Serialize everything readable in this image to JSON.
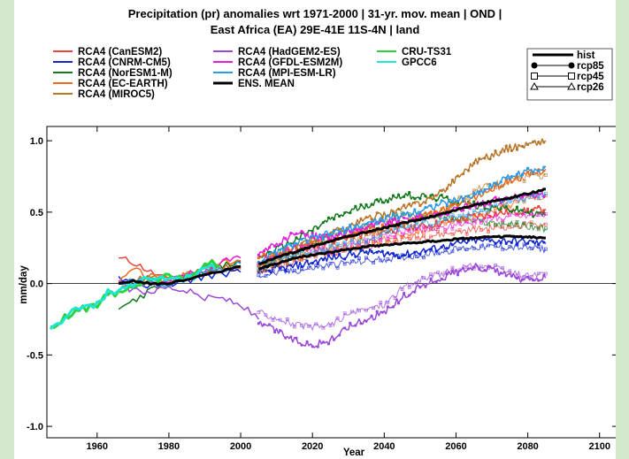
{
  "chart_data": {
    "type": "line",
    "title": [
      "Precipitation (pr) anomalies wrt 1971-2000 | 31-yr. mov. mean | OND |",
      "East Africa (EA) 29E-41E 11S-4N | land"
    ],
    "xlabel": "Year",
    "ylabel": "mm/day",
    "xlim": [
      1946,
      2105
    ],
    "ylim": [
      -1.08,
      1.1
    ],
    "xticks": [
      1960,
      1980,
      2000,
      2020,
      2040,
      2060,
      2080,
      2100
    ],
    "yticks": [
      -1.0,
      -0.5,
      0.0,
      0.5,
      1.0
    ],
    "ytick_labels": [
      "-1.0",
      "-0.5",
      "0.0",
      "0.5",
      "1.0"
    ],
    "zero_line": true,
    "grid": false,
    "legend_position": "top",
    "series": [
      {
        "name": "RCA4 (CanESM2)",
        "color": "#e8463c",
        "hist": [
          [
            1966,
            0.18
          ],
          [
            1970,
            0.15
          ],
          [
            1975,
            0.08
          ],
          [
            1980,
            0.02
          ],
          [
            1985,
            0.05
          ],
          [
            1990,
            0.08
          ],
          [
            1995,
            0.1
          ],
          [
            2000,
            0.12
          ]
        ],
        "rcp85": [
          [
            2005,
            0.12
          ],
          [
            2015,
            0.22
          ],
          [
            2025,
            0.3
          ],
          [
            2035,
            0.35
          ],
          [
            2045,
            0.38
          ],
          [
            2055,
            0.42
          ],
          [
            2065,
            0.47
          ],
          [
            2075,
            0.5
          ],
          [
            2085,
            0.52
          ]
        ]
      },
      {
        "name": "RCA4 (CNRM-CM5)",
        "color": "#1428d2",
        "hist": [
          [
            1966,
            0.05
          ],
          [
            1970,
            0.0
          ],
          [
            1975,
            -0.02
          ],
          [
            1980,
            0.0
          ],
          [
            1985,
            0.02
          ],
          [
            1990,
            0.05
          ],
          [
            1995,
            0.07
          ],
          [
            2000,
            0.08
          ]
        ],
        "rcp85": [
          [
            2005,
            0.08
          ],
          [
            2015,
            0.12
          ],
          [
            2025,
            0.18
          ],
          [
            2035,
            0.22
          ],
          [
            2045,
            0.2
          ],
          [
            2055,
            0.25
          ],
          [
            2065,
            0.3
          ],
          [
            2075,
            0.3
          ],
          [
            2085,
            0.28
          ]
        ]
      },
      {
        "name": "RCA4 (NorESM1-M)",
        "color": "#157a1e",
        "hist": [
          [
            1966,
            -0.18
          ],
          [
            1970,
            -0.12
          ],
          [
            1975,
            -0.05
          ],
          [
            1980,
            0.0
          ],
          [
            1985,
            0.05
          ],
          [
            1990,
            0.08
          ],
          [
            1995,
            0.12
          ],
          [
            2000,
            0.15
          ]
        ],
        "rcp85": [
          [
            2005,
            0.18
          ],
          [
            2015,
            0.3
          ],
          [
            2025,
            0.45
          ],
          [
            2035,
            0.55
          ],
          [
            2045,
            0.62
          ],
          [
            2055,
            0.6
          ],
          [
            2065,
            0.55
          ],
          [
            2075,
            0.52
          ],
          [
            2085,
            0.48
          ]
        ]
      },
      {
        "name": "RCA4 (EC-EARTH)",
        "color": "#f06a1e",
        "hist": [
          [
            1966,
            0.0
          ],
          [
            1970,
            0.1
          ],
          [
            1975,
            0.05
          ],
          [
            1980,
            0.02
          ],
          [
            1985,
            0.06
          ],
          [
            1990,
            0.1
          ],
          [
            1995,
            0.14
          ],
          [
            2000,
            0.16
          ]
        ],
        "rcp85": [
          [
            2005,
            0.18
          ],
          [
            2015,
            0.25
          ],
          [
            2025,
            0.32
          ],
          [
            2035,
            0.38
          ],
          [
            2045,
            0.42
          ],
          [
            2055,
            0.5
          ],
          [
            2065,
            0.6
          ],
          [
            2075,
            0.72
          ],
          [
            2085,
            0.8
          ]
        ]
      },
      {
        "name": "RCA4 (MIROC5)",
        "color": "#b8762a",
        "hist": [
          [
            1966,
            -0.05
          ],
          [
            1970,
            0.02
          ],
          [
            1975,
            0.05
          ],
          [
            1980,
            0.03
          ],
          [
            1985,
            0.06
          ],
          [
            1990,
            0.1
          ],
          [
            1995,
            0.12
          ],
          [
            2000,
            0.1
          ]
        ],
        "rcp85": [
          [
            2005,
            0.12
          ],
          [
            2015,
            0.25
          ],
          [
            2025,
            0.35
          ],
          [
            2035,
            0.45
          ],
          [
            2045,
            0.52
          ],
          [
            2055,
            0.62
          ],
          [
            2065,
            0.85
          ],
          [
            2075,
            0.95
          ],
          [
            2085,
            1.0
          ]
        ]
      },
      {
        "name": "RCA4 (HadGEM2-ES)",
        "color": "#9a48d8",
        "hist": [
          [
            1966,
            0.0
          ],
          [
            1970,
            -0.05
          ],
          [
            1975,
            -0.05
          ],
          [
            1980,
            -0.02
          ],
          [
            1985,
            -0.05
          ],
          [
            1990,
            -0.1
          ],
          [
            1995,
            -0.1
          ],
          [
            2000,
            -0.15
          ],
          [
            2005,
            -0.25
          ]
        ],
        "rcp85": [
          [
            2005,
            -0.28
          ],
          [
            2010,
            -0.33
          ],
          [
            2015,
            -0.4
          ],
          [
            2020,
            -0.43
          ],
          [
            2025,
            -0.4
          ],
          [
            2030,
            -0.3
          ],
          [
            2035,
            -0.25
          ],
          [
            2040,
            -0.2
          ],
          [
            2045,
            -0.1
          ],
          [
            2050,
            -0.02
          ],
          [
            2055,
            0.03
          ],
          [
            2060,
            0.08
          ],
          [
            2065,
            0.12
          ],
          [
            2070,
            0.1
          ],
          [
            2075,
            0.05
          ],
          [
            2080,
            0.02
          ],
          [
            2085,
            0.04
          ]
        ]
      },
      {
        "name": "RCA4 (GFDL-ESM2M)",
        "color": "#e81cdc",
        "hist": [
          [
            1966,
            0.02
          ],
          [
            1970,
            0.0
          ],
          [
            1975,
            0.0
          ],
          [
            1980,
            0.02
          ],
          [
            1985,
            0.06
          ],
          [
            1990,
            0.1
          ],
          [
            1995,
            0.15
          ],
          [
            2000,
            0.18
          ]
        ],
        "rcp85": [
          [
            2005,
            0.2
          ],
          [
            2015,
            0.35
          ],
          [
            2025,
            0.32
          ],
          [
            2035,
            0.4
          ],
          [
            2045,
            0.45
          ],
          [
            2055,
            0.48
          ],
          [
            2065,
            0.55
          ],
          [
            2075,
            0.6
          ],
          [
            2085,
            0.62
          ]
        ]
      },
      {
        "name": "RCA4 (MPI-ESM-LR)",
        "color": "#2a9ae8",
        "hist": [
          [
            1966,
            0.0
          ],
          [
            1970,
            0.02
          ],
          [
            1975,
            0.0
          ],
          [
            1980,
            0.0
          ],
          [
            1985,
            0.04
          ],
          [
            1990,
            0.08
          ],
          [
            1995,
            0.1
          ],
          [
            2000,
            0.14
          ]
        ],
        "rcp85": [
          [
            2005,
            0.15
          ],
          [
            2015,
            0.28
          ],
          [
            2025,
            0.35
          ],
          [
            2035,
            0.42
          ],
          [
            2045,
            0.48
          ],
          [
            2055,
            0.55
          ],
          [
            2065,
            0.62
          ],
          [
            2075,
            0.75
          ],
          [
            2085,
            0.82
          ]
        ]
      },
      {
        "name": "ENS. MEAN",
        "color": "#000000",
        "thick": true,
        "hist": [
          [
            1966,
            0.0
          ],
          [
            1970,
            0.02
          ],
          [
            1975,
            0.0
          ],
          [
            1980,
            0.0
          ],
          [
            1985,
            0.03
          ],
          [
            1990,
            0.06
          ],
          [
            1995,
            0.09
          ],
          [
            2000,
            0.12
          ]
        ],
        "rcp85": [
          [
            2005,
            0.14
          ],
          [
            2015,
            0.22
          ],
          [
            2025,
            0.3
          ],
          [
            2035,
            0.36
          ],
          [
            2045,
            0.42
          ],
          [
            2055,
            0.48
          ],
          [
            2065,
            0.55
          ],
          [
            2075,
            0.6
          ],
          [
            2085,
            0.66
          ]
        ],
        "rcp45": [
          [
            2005,
            0.1
          ],
          [
            2015,
            0.18
          ],
          [
            2025,
            0.22
          ],
          [
            2035,
            0.26
          ],
          [
            2045,
            0.28
          ],
          [
            2055,
            0.3
          ],
          [
            2065,
            0.32
          ],
          [
            2075,
            0.33
          ],
          [
            2085,
            0.32
          ]
        ]
      },
      {
        "name": "CRU-TS31",
        "color": "#2ad23c",
        "hist": [
          [
            1947,
            -0.3
          ],
          [
            1952,
            -0.22
          ],
          [
            1956,
            -0.18
          ],
          [
            1960,
            -0.15
          ],
          [
            1963,
            -0.08
          ],
          [
            1967,
            -0.05
          ],
          [
            1972,
            0.0
          ],
          [
            1976,
            0.02
          ],
          [
            1980,
            0.05
          ],
          [
            1984,
            0.04
          ],
          [
            1988,
            0.08
          ],
          [
            1991,
            0.15
          ],
          [
            1994,
            0.12
          ]
        ]
      },
      {
        "name": "GPCC6",
        "color": "#1ee6d2",
        "hist": [
          [
            1947,
            -0.32
          ],
          [
            1952,
            -0.22
          ],
          [
            1956,
            -0.16
          ],
          [
            1960,
            -0.14
          ],
          [
            1963,
            -0.06
          ],
          [
            1967,
            -0.04
          ],
          [
            1972,
            0.02
          ],
          [
            1976,
            0.03
          ],
          [
            1980,
            0.04
          ],
          [
            1984,
            0.03
          ],
          [
            1988,
            0.06
          ],
          [
            1991,
            0.12
          ],
          [
            1993,
            0.1
          ]
        ]
      }
    ],
    "scenario_legend": [
      {
        "label": "hist",
        "marker": "none"
      },
      {
        "label": "rcp85",
        "marker": "filled-circle"
      },
      {
        "label": "rcp45",
        "marker": "square"
      },
      {
        "label": "rcp26",
        "marker": "triangle"
      }
    ]
  }
}
